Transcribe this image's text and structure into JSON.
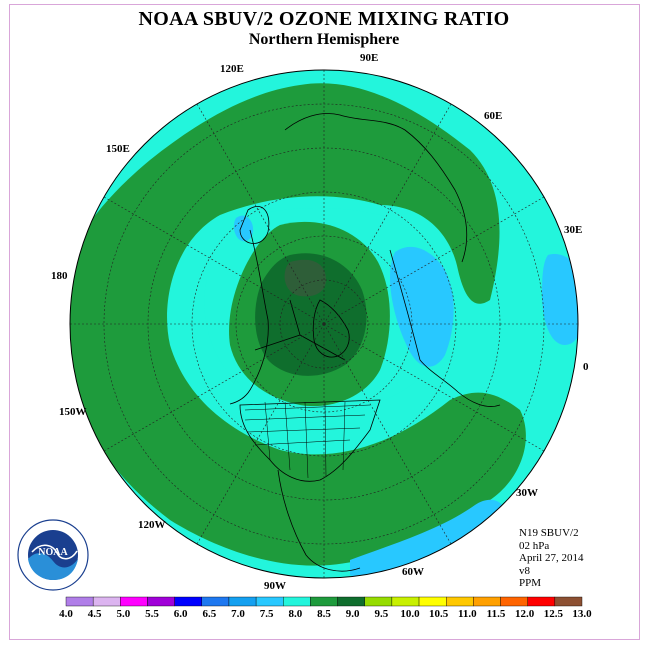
{
  "title": "NOAA SBUV/2 OZONE MIXING RATIO",
  "subtitle": "Northern Hemisphere",
  "longitude_labels": {
    "lon_90e": "90E",
    "lon_60e": "60E",
    "lon_30e": "30E",
    "lon_0": "0",
    "lon_30w": "30W",
    "lon_60w": "60W",
    "lon_90w": "90W",
    "lon_120w": "120W",
    "lon_150w": "150W",
    "lon_180": "180",
    "lon_150e": "150E",
    "lon_120e": "120E"
  },
  "info": {
    "satellite": "N19 SBUV/2",
    "level": "02 hPa",
    "date": "April 27, 2014",
    "version": "v8",
    "units": "PPM"
  },
  "logo": {
    "text": "NOAA",
    "ring_text": "NATIONAL OCEANIC AND ATMOSPHERIC ADMINISTRATION · U.S. DEPARTMENT OF COMMERCE"
  },
  "colorbar": {
    "ticks": [
      "4.0",
      "4.5",
      "5.0",
      "5.5",
      "6.0",
      "6.5",
      "7.0",
      "7.5",
      "8.0",
      "8.5",
      "9.0",
      "9.5",
      "10.0",
      "10.5",
      "11.0",
      "11.5",
      "12.0",
      "12.5",
      "13.0"
    ],
    "colors": [
      "#b07ee8",
      "#dcb4f0",
      "#ff00ff",
      "#a000d8",
      "#0000ff",
      "#1e78f0",
      "#14a0f0",
      "#28c8ff",
      "#23f5dc",
      "#1e9b3c",
      "#0f6e2d",
      "#96dc00",
      "#c8f000",
      "#ffff00",
      "#ffc800",
      "#ffa000",
      "#ff6400",
      "#ff0000",
      "#8c5032"
    ]
  },
  "legend_colors": {
    "band_7_0": "#28c8ff",
    "band_7_5": "#23f5dc",
    "band_8_0": "#1e9b3c",
    "band_8_5": "#0f6e2d",
    "band_9_0": "#2e5e38"
  }
}
